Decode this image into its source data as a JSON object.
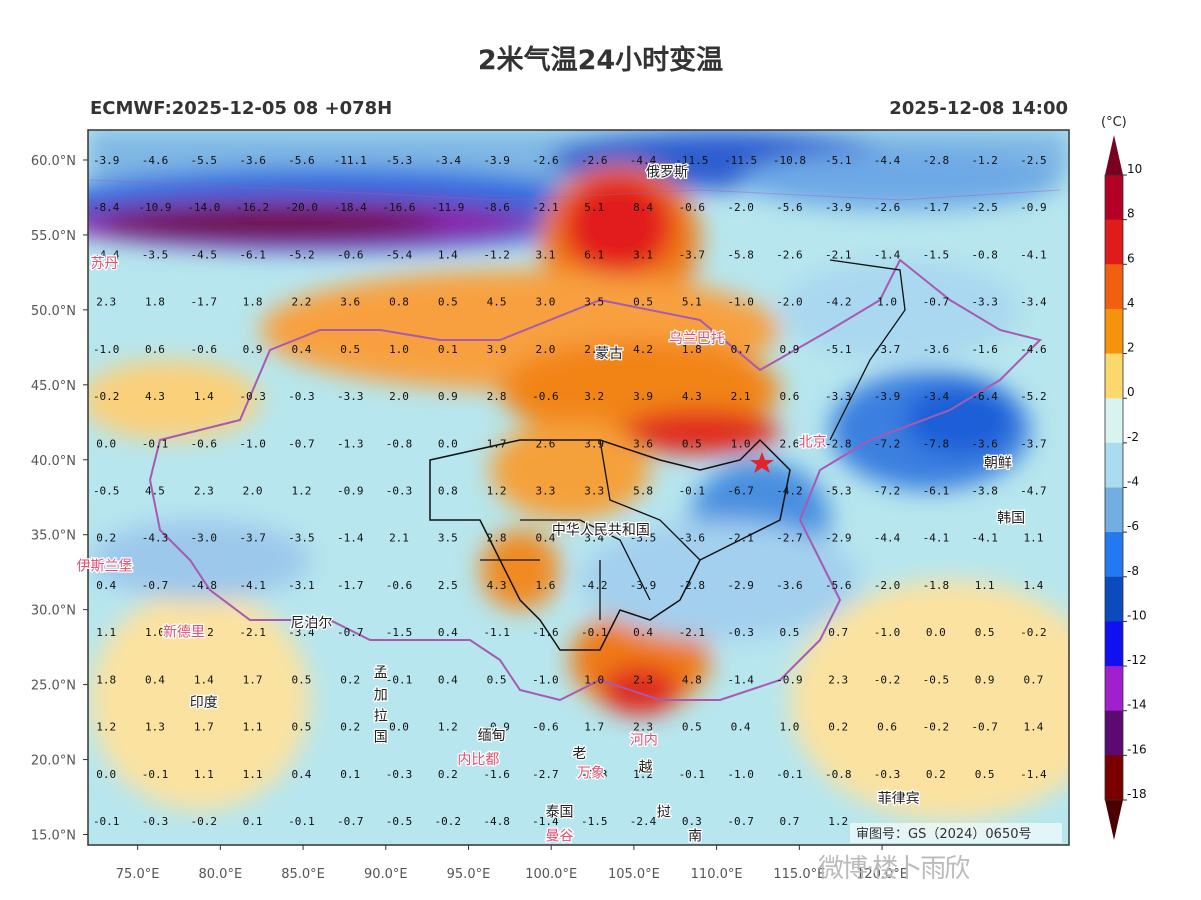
{
  "title": "2米气温24小时变温",
  "subtitle_left": "ECMWF:2025-12-05 08 +078H",
  "subtitle_right": "2025-12-08 14:00",
  "colorbar": {
    "unit": "(°C)",
    "labels": [
      "10",
      "8",
      "6",
      "4",
      "2",
      "0",
      "-2",
      "-4",
      "-6",
      "-8",
      "-10",
      "-12",
      "-14",
      "-16",
      "-18"
    ],
    "colors": [
      "#7a0020",
      "#b30025",
      "#e01b1b",
      "#f06010",
      "#f5920e",
      "#fbd86b",
      "#d8f3f0",
      "#a9dcf0",
      "#72aee0",
      "#2478f0",
      "#0b4bbd",
      "#1010f0",
      "#a020d0",
      "#5a0a70",
      "#7a0000",
      "#4a0000"
    ]
  },
  "axes": {
    "x_ticks": [
      "75.0°E",
      "80.0°E",
      "85.0°E",
      "90.0°E",
      "95.0°E",
      "100.0°E",
      "105.0°E",
      "110.0°E",
      "115.0°E",
      "120.0°E"
    ],
    "y_ticks": [
      "60.0°N",
      "55.0°N",
      "50.0°N",
      "45.0°N",
      "40.0°N",
      "35.0°N",
      "30.0°N",
      "25.0°N",
      "20.0°N",
      "15.0°N"
    ]
  },
  "grid_values": [
    [
      "-3.9",
      "-4.6",
      "-5.5",
      "-3.6",
      "-5.6",
      "-11.1",
      "-5.3",
      "-3.4",
      "-3.9",
      "-2.6",
      "-2.6",
      "-4.4",
      "-11.5",
      "-11.5",
      "-10.8",
      "-5.1",
      "-4.4",
      "-2.8",
      "-1.2",
      "-2.5"
    ],
    [
      "-8.4",
      "-10.9",
      "-14.0",
      "-16.2",
      "-20.0",
      "-18.4",
      "-16.6",
      "-11.9",
      "-8.6",
      "-2.1",
      "5.1",
      "8.4",
      "-0.6",
      "-2.0",
      "-5.6",
      "-3.9",
      "-2.6",
      "-1.7",
      "-2.5",
      "-0.9"
    ],
    [
      "-4.4",
      "-3.5",
      "-4.5",
      "-6.1",
      "-5.2",
      "-0.6",
      "-5.4",
      "1.4",
      "-1.2",
      "3.1",
      "6.1",
      "3.1",
      "-3.7",
      "-5.8",
      "-2.6",
      "-2.1",
      "-1.4",
      "-1.5",
      "-0.8",
      "-4.1"
    ],
    [
      "2.3",
      "1.8",
      "-1.7",
      "1.8",
      "2.2",
      "3.6",
      "0.8",
      "0.5",
      "4.5",
      "3.0",
      "3.5",
      "0.5",
      "5.1",
      "-1.0",
      "-2.0",
      "-4.2",
      "1.0",
      "-0.7",
      "-3.3",
      "-3.4"
    ],
    [
      "-1.0",
      "0.6",
      "-0.6",
      "0.9",
      "0.4",
      "0.5",
      "1.0",
      "0.1",
      "3.9",
      "2.0",
      "2.1",
      "4.2",
      "1.8",
      "0.7",
      "0.9",
      "-5.1",
      "-3.7",
      "-3.6",
      "-1.6",
      "-4.6"
    ],
    [
      "-0.2",
      "4.3",
      "1.4",
      "-0.3",
      "-0.3",
      "-3.3",
      "2.0",
      "0.9",
      "2.8",
      "-0.6",
      "3.2",
      "3.9",
      "4.3",
      "2.1",
      "0.6",
      "-3.3",
      "-3.9",
      "-3.4",
      "-6.4",
      "-5.2"
    ],
    [
      "0.0",
      "-0.1",
      "-0.6",
      "-1.0",
      "-0.7",
      "-1.3",
      "-0.8",
      "0.0",
      "1.7",
      "2.6",
      "3.9",
      "3.6",
      "0.5",
      "1.0",
      "2.6",
      "-2.8",
      "-7.2",
      "-7.8",
      "-3.6",
      "-3.7"
    ],
    [
      "-0.5",
      "4.5",
      "2.3",
      "2.0",
      "1.2",
      "-0.9",
      "-0.3",
      "0.8",
      "1.2",
      "3.3",
      "3.3",
      "5.8",
      "-0.1",
      "-6.7",
      "-4.2",
      "-5.3",
      "-7.2",
      "-6.1",
      "-3.8",
      "-4.7"
    ],
    [
      "0.2",
      "-4.3",
      "-3.0",
      "-3.7",
      "-3.5",
      "-1.4",
      "2.1",
      "3.5",
      "2.8",
      "0.4",
      "3.4",
      "-3.5",
      "-3.6",
      "-2.1",
      "-2.7",
      "-2.9",
      "-4.4",
      "-4.1",
      "-4.1",
      "1.1"
    ],
    [
      "0.4",
      "-0.7",
      "-4.8",
      "-4.1",
      "-3.1",
      "-1.7",
      "-0.6",
      "2.5",
      "4.3",
      "1.6",
      "-4.2",
      "-3.9",
      "-2.8",
      "-2.9",
      "-3.6",
      "-5.6",
      "-2.0",
      "-1.8",
      "1.1",
      "1.4"
    ],
    [
      "1.1",
      "1.0",
      "1.2",
      "-2.1",
      "-3.4",
      "-0.7",
      "-1.5",
      "0.4",
      "-1.1",
      "-1.6",
      "-0.1",
      "0.4",
      "-2.1",
      "-0.3",
      "0.5",
      "0.7",
      "-1.0",
      "0.0",
      "0.5",
      "-0.2"
    ],
    [
      "1.8",
      "0.4",
      "1.4",
      "1.7",
      "0.5",
      "0.2",
      "-0.1",
      "0.4",
      "0.5",
      "-1.0",
      "1.0",
      "2.3",
      "4.8",
      "-1.4",
      "-0.9",
      "2.3",
      "-0.2",
      "-0.5",
      "0.9",
      "0.7"
    ],
    [
      "1.2",
      "1.3",
      "1.7",
      "1.1",
      "0.5",
      "0.2",
      "0.0",
      "1.2",
      "-0.9",
      "-0.6",
      "1.7",
      "2.3",
      "0.5",
      "0.4",
      "1.0",
      "0.2",
      "0.6",
      "-0.2",
      "-0.7",
      "1.4"
    ],
    [
      "0.0",
      "-0.1",
      "1.1",
      "1.1",
      "0.4",
      "0.1",
      "-0.3",
      "0.2",
      "-1.6",
      "-2.7",
      "-0.3",
      "1.2",
      "-0.1",
      "-1.0",
      "-0.1",
      "-0.8",
      "-0.3",
      "0.2",
      "0.5",
      "-1.4"
    ],
    [
      "-0.1",
      "-0.3",
      "-0.2",
      "0.1",
      "-0.1",
      "-0.7",
      "-0.5",
      "-0.2",
      "-4.8",
      "-1.4",
      "-1.5",
      "-2.4",
      "0.3",
      "-0.7",
      "0.7",
      "1.2",
      "",
      "",
      "",
      ""
    ]
  ],
  "place_labels": [
    {
      "name": "俄罗斯",
      "lon": 107.0,
      "lat": 58.9,
      "color": "#222"
    },
    {
      "name": "苏丹",
      "lon": 73.0,
      "lat": 52.8,
      "color": "#e05070"
    },
    {
      "name": "乌兰巴托",
      "lon": 108.8,
      "lat": 47.8,
      "color": "#e05070"
    },
    {
      "name": "蒙古",
      "lon": 103.5,
      "lat": 46.8,
      "color": "#222"
    },
    {
      "name": "北京",
      "lon": 115.8,
      "lat": 40.9,
      "color": "#e05070"
    },
    {
      "name": "朝鲜",
      "lon": 127.0,
      "lat": 39.5,
      "color": "#222"
    },
    {
      "name": "韩国",
      "lon": 127.8,
      "lat": 35.8,
      "color": "#222"
    },
    {
      "name": "中华人民共和国",
      "lon": 103.0,
      "lat": 35.0,
      "color": "#222"
    },
    {
      "name": "伊斯兰堡",
      "lon": 73.0,
      "lat": 32.6,
      "color": "#e05070"
    },
    {
      "name": "新德里",
      "lon": 77.8,
      "lat": 28.2,
      "color": "#e05070"
    },
    {
      "name": "尼泊尔",
      "lon": 85.5,
      "lat": 28.8,
      "color": "#222"
    },
    {
      "name": "印度",
      "lon": 79.0,
      "lat": 23.5,
      "color": "#222"
    },
    {
      "name": "孟",
      "lon": 89.7,
      "lat": 25.5,
      "color": "#222"
    },
    {
      "name": "加",
      "lon": 89.7,
      "lat": 24.0,
      "color": "#222"
    },
    {
      "name": "拉",
      "lon": 89.7,
      "lat": 22.6,
      "color": "#222"
    },
    {
      "name": "国",
      "lon": 89.7,
      "lat": 21.2,
      "color": "#222"
    },
    {
      "name": "缅甸",
      "lon": 96.4,
      "lat": 21.3,
      "color": "#222"
    },
    {
      "name": "内比都",
      "lon": 95.6,
      "lat": 19.7,
      "color": "#e05070"
    },
    {
      "name": "老",
      "lon": 101.7,
      "lat": 20.1,
      "color": "#222"
    },
    {
      "name": "河内",
      "lon": 105.6,
      "lat": 21.0,
      "color": "#e05070"
    },
    {
      "name": "越",
      "lon": 105.7,
      "lat": 19.2,
      "color": "#222"
    },
    {
      "name": "万象",
      "lon": 102.4,
      "lat": 18.8,
      "color": "#e05070"
    },
    {
      "name": "泰国",
      "lon": 100.5,
      "lat": 16.2,
      "color": "#222"
    },
    {
      "name": "挝",
      "lon": 106.8,
      "lat": 16.2,
      "color": "#222"
    },
    {
      "name": "曼谷",
      "lon": 100.5,
      "lat": 14.6,
      "color": "#e05070"
    },
    {
      "name": "南",
      "lon": 108.7,
      "lat": 14.6,
      "color": "#222"
    },
    {
      "name": "菲律宾",
      "lon": 121.0,
      "lat": 17.1,
      "color": "#222"
    }
  ],
  "approval_note": "审图号：GS（2024）0650号",
  "watermark": "微博·楼卜雨欣"
}
